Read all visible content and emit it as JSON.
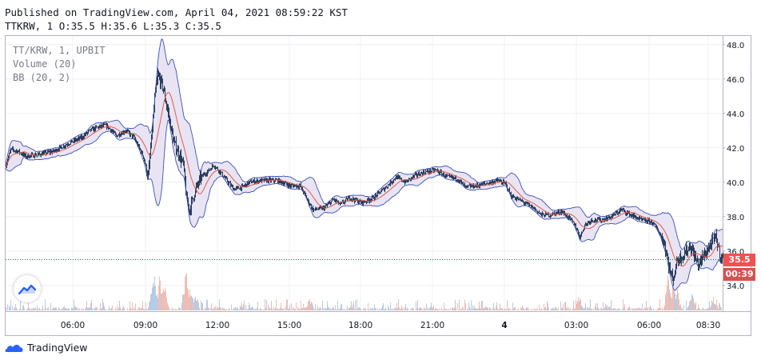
{
  "header": {
    "published": "Published on TradingView.com, April 04, 2021 08:59:22 KST",
    "ohlc": "TTKRW, 1 O:35.5 H:35.6 L:35.3 C:35.5"
  },
  "legend": {
    "symbol": "TT/KRW, 1, UPBIT",
    "volume": "Volume (20)",
    "bb": "BB (20, 2)"
  },
  "price_tag": {
    "price": "35.5",
    "countdown": "00:39"
  },
  "branding": {
    "logo_text": "TradingView"
  },
  "colors": {
    "up": "#26a69a",
    "down": "#ef5350",
    "candle": "#2a3d5a",
    "basis": "#e05a4f",
    "band": "#3f51b5",
    "fill": "#e6e1f2",
    "vol_up": "#b4cce6",
    "vol_down": "#f0bdb4",
    "grid": "#eef0f3"
  },
  "chart_data": {
    "type": "line",
    "symbol": "TT/KRW",
    "interval": "1",
    "x_ticks": [
      "06:00",
      "09:00",
      "12:00",
      "15:00",
      "18:00",
      "21:00",
      "4",
      "03:00",
      "06:00",
      "08:30"
    ],
    "y_ticks": [
      "48.0",
      "46.0",
      "44.0",
      "42.0",
      "40.0",
      "38.0",
      "36.0",
      "34.0"
    ],
    "ylim": [
      32.5,
      48.5
    ],
    "last_price": 35.5,
    "price_path": [
      [
        0,
        41.0
      ],
      [
        6,
        41.9
      ],
      [
        15,
        41.8
      ],
      [
        25,
        41.5
      ],
      [
        40,
        41.6
      ],
      [
        60,
        41.8
      ],
      [
        80,
        42.3
      ],
      [
        95,
        42.6
      ],
      [
        105,
        43.0
      ],
      [
        115,
        43.2
      ],
      [
        125,
        43.3
      ],
      [
        130,
        43.1
      ],
      [
        138,
        42.7
      ],
      [
        150,
        43.0
      ],
      [
        160,
        42.6
      ],
      [
        172,
        41.5
      ],
      [
        178,
        40.3
      ],
      [
        182,
        42.5
      ],
      [
        186,
        44.8
      ],
      [
        190,
        46.2
      ],
      [
        196,
        45.6
      ],
      [
        203,
        44.0
      ],
      [
        210,
        42.3
      ],
      [
        216,
        41.7
      ],
      [
        222,
        41.0
      ],
      [
        226,
        39.0
      ],
      [
        230,
        38.4
      ],
      [
        236,
        39.4
      ],
      [
        244,
        40.3
      ],
      [
        252,
        40.6
      ],
      [
        260,
        41.0
      ],
      [
        268,
        40.6
      ],
      [
        278,
        40.0
      ],
      [
        285,
        39.6
      ],
      [
        295,
        39.7
      ],
      [
        305,
        40.0
      ],
      [
        320,
        40.1
      ],
      [
        340,
        40.1
      ],
      [
        355,
        39.8
      ],
      [
        368,
        39.8
      ],
      [
        378,
        38.9
      ],
      [
        384,
        38.4
      ],
      [
        398,
        38.5
      ],
      [
        410,
        39.0
      ],
      [
        418,
        38.7
      ],
      [
        430,
        39.1
      ],
      [
        445,
        38.8
      ],
      [
        460,
        39.1
      ],
      [
        475,
        39.7
      ],
      [
        488,
        40.3
      ],
      [
        500,
        40.0
      ],
      [
        512,
        40.4
      ],
      [
        525,
        40.6
      ],
      [
        538,
        40.7
      ],
      [
        552,
        40.3
      ],
      [
        565,
        40.2
      ],
      [
        575,
        39.7
      ],
      [
        588,
        39.8
      ],
      [
        600,
        39.9
      ],
      [
        615,
        40.1
      ],
      [
        625,
        39.9
      ],
      [
        632,
        39.2
      ],
      [
        645,
        38.9
      ],
      [
        660,
        38.5
      ],
      [
        670,
        38.1
      ],
      [
        680,
        38.1
      ],
      [
        695,
        38.3
      ],
      [
        705,
        37.9
      ],
      [
        712,
        37.5
      ],
      [
        718,
        36.8
      ],
      [
        724,
        37.5
      ],
      [
        732,
        37.8
      ],
      [
        745,
        37.8
      ],
      [
        758,
        38.0
      ],
      [
        770,
        38.4
      ],
      [
        782,
        38.1
      ],
      [
        795,
        37.8
      ],
      [
        808,
        37.7
      ],
      [
        816,
        37.2
      ],
      [
        824,
        36.4
      ],
      [
        830,
        35.0
      ],
      [
        834,
        34.3
      ],
      [
        840,
        35.5
      ],
      [
        848,
        35.8
      ],
      [
        856,
        36.3
      ],
      [
        866,
        35.2
      ],
      [
        874,
        35.8
      ],
      [
        882,
        36.4
      ],
      [
        888,
        36.8
      ],
      [
        894,
        35.7
      ],
      [
        899,
        35.5
      ]
    ],
    "volume_spikes": [
      {
        "x": 184,
        "rel": 0.9
      },
      {
        "x": 192,
        "rel": 0.6
      },
      {
        "x": 198,
        "rel": 0.5
      },
      {
        "x": 225,
        "rel": 0.85
      },
      {
        "x": 230,
        "rel": 0.5
      },
      {
        "x": 237,
        "rel": 0.4
      },
      {
        "x": 380,
        "rel": 0.25
      },
      {
        "x": 717,
        "rel": 0.3
      },
      {
        "x": 829,
        "rel": 0.75
      },
      {
        "x": 835,
        "rel": 0.5
      },
      {
        "x": 840,
        "rel": 0.35
      },
      {
        "x": 858,
        "rel": 0.3
      },
      {
        "x": 885,
        "rel": 0.25
      }
    ]
  }
}
